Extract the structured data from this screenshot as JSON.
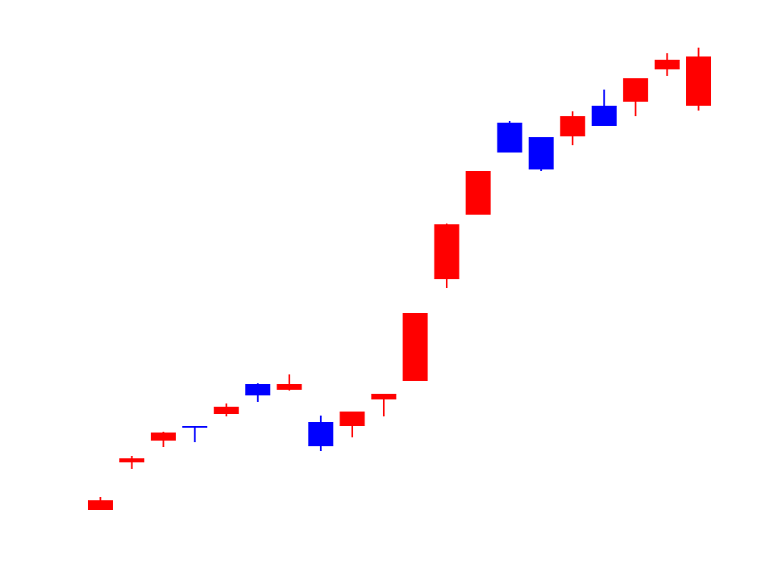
{
  "chart_data": {
    "type": "candlestick",
    "title": "",
    "xlabel": "",
    "ylabel": "",
    "axes_visible": false,
    "grid": false,
    "legend": "none",
    "colors": {
      "up": "#ff0000",
      "down": "#0000ff"
    },
    "ylim": [
      0,
      720
    ],
    "candles": [
      {
        "index": 1,
        "direction": "up",
        "open": 88,
        "close": 100,
        "high": 104,
        "low": 88
      },
      {
        "index": 2,
        "direction": "up",
        "open": 147,
        "close": 152,
        "high": 155,
        "low": 139
      },
      {
        "index": 3,
        "direction": "up",
        "open": 174,
        "close": 184,
        "high": 185,
        "low": 166
      },
      {
        "index": 4,
        "direction": "down",
        "open": 192,
        "close": 190,
        "high": 192,
        "low": 172
      },
      {
        "index": 5,
        "direction": "up",
        "open": 207,
        "close": 216,
        "high": 220,
        "low": 204
      },
      {
        "index": 6,
        "direction": "down",
        "open": 244,
        "close": 230,
        "high": 245,
        "low": 222
      },
      {
        "index": 7,
        "direction": "up",
        "open": 237,
        "close": 244,
        "high": 256,
        "low": 236
      },
      {
        "index": 8,
        "direction": "down",
        "open": 197,
        "close": 167,
        "high": 205,
        "low": 161
      },
      {
        "index": 9,
        "direction": "up",
        "open": 192,
        "close": 210,
        "high": 210,
        "low": 178
      },
      {
        "index": 10,
        "direction": "up",
        "open": 225,
        "close": 232,
        "high": 232,
        "low": 204
      },
      {
        "index": 11,
        "direction": "up",
        "open": 248,
        "close": 332,
        "high": 332,
        "low": 248
      },
      {
        "index": 12,
        "direction": "up",
        "open": 374,
        "close": 442,
        "high": 443,
        "low": 363
      },
      {
        "index": 13,
        "direction": "up",
        "open": 454,
        "close": 508,
        "high": 508,
        "low": 454
      },
      {
        "index": 14,
        "direction": "down",
        "open": 568,
        "close": 531,
        "high": 570,
        "low": 531
      },
      {
        "index": 15,
        "direction": "down",
        "open": 550,
        "close": 510,
        "high": 550,
        "low": 508
      },
      {
        "index": 16,
        "direction": "up",
        "open": 551,
        "close": 576,
        "high": 582,
        "low": 540
      },
      {
        "index": 17,
        "direction": "down",
        "open": 589,
        "close": 564,
        "high": 609,
        "low": 564
      },
      {
        "index": 18,
        "direction": "up",
        "open": 594,
        "close": 623,
        "high": 623,
        "low": 576
      },
      {
        "index": 19,
        "direction": "up",
        "open": 634,
        "close": 646,
        "high": 654,
        "low": 626
      },
      {
        "index": 20,
        "direction": "up",
        "open": 589,
        "close": 650,
        "high": 661,
        "low": 583
      }
    ]
  }
}
